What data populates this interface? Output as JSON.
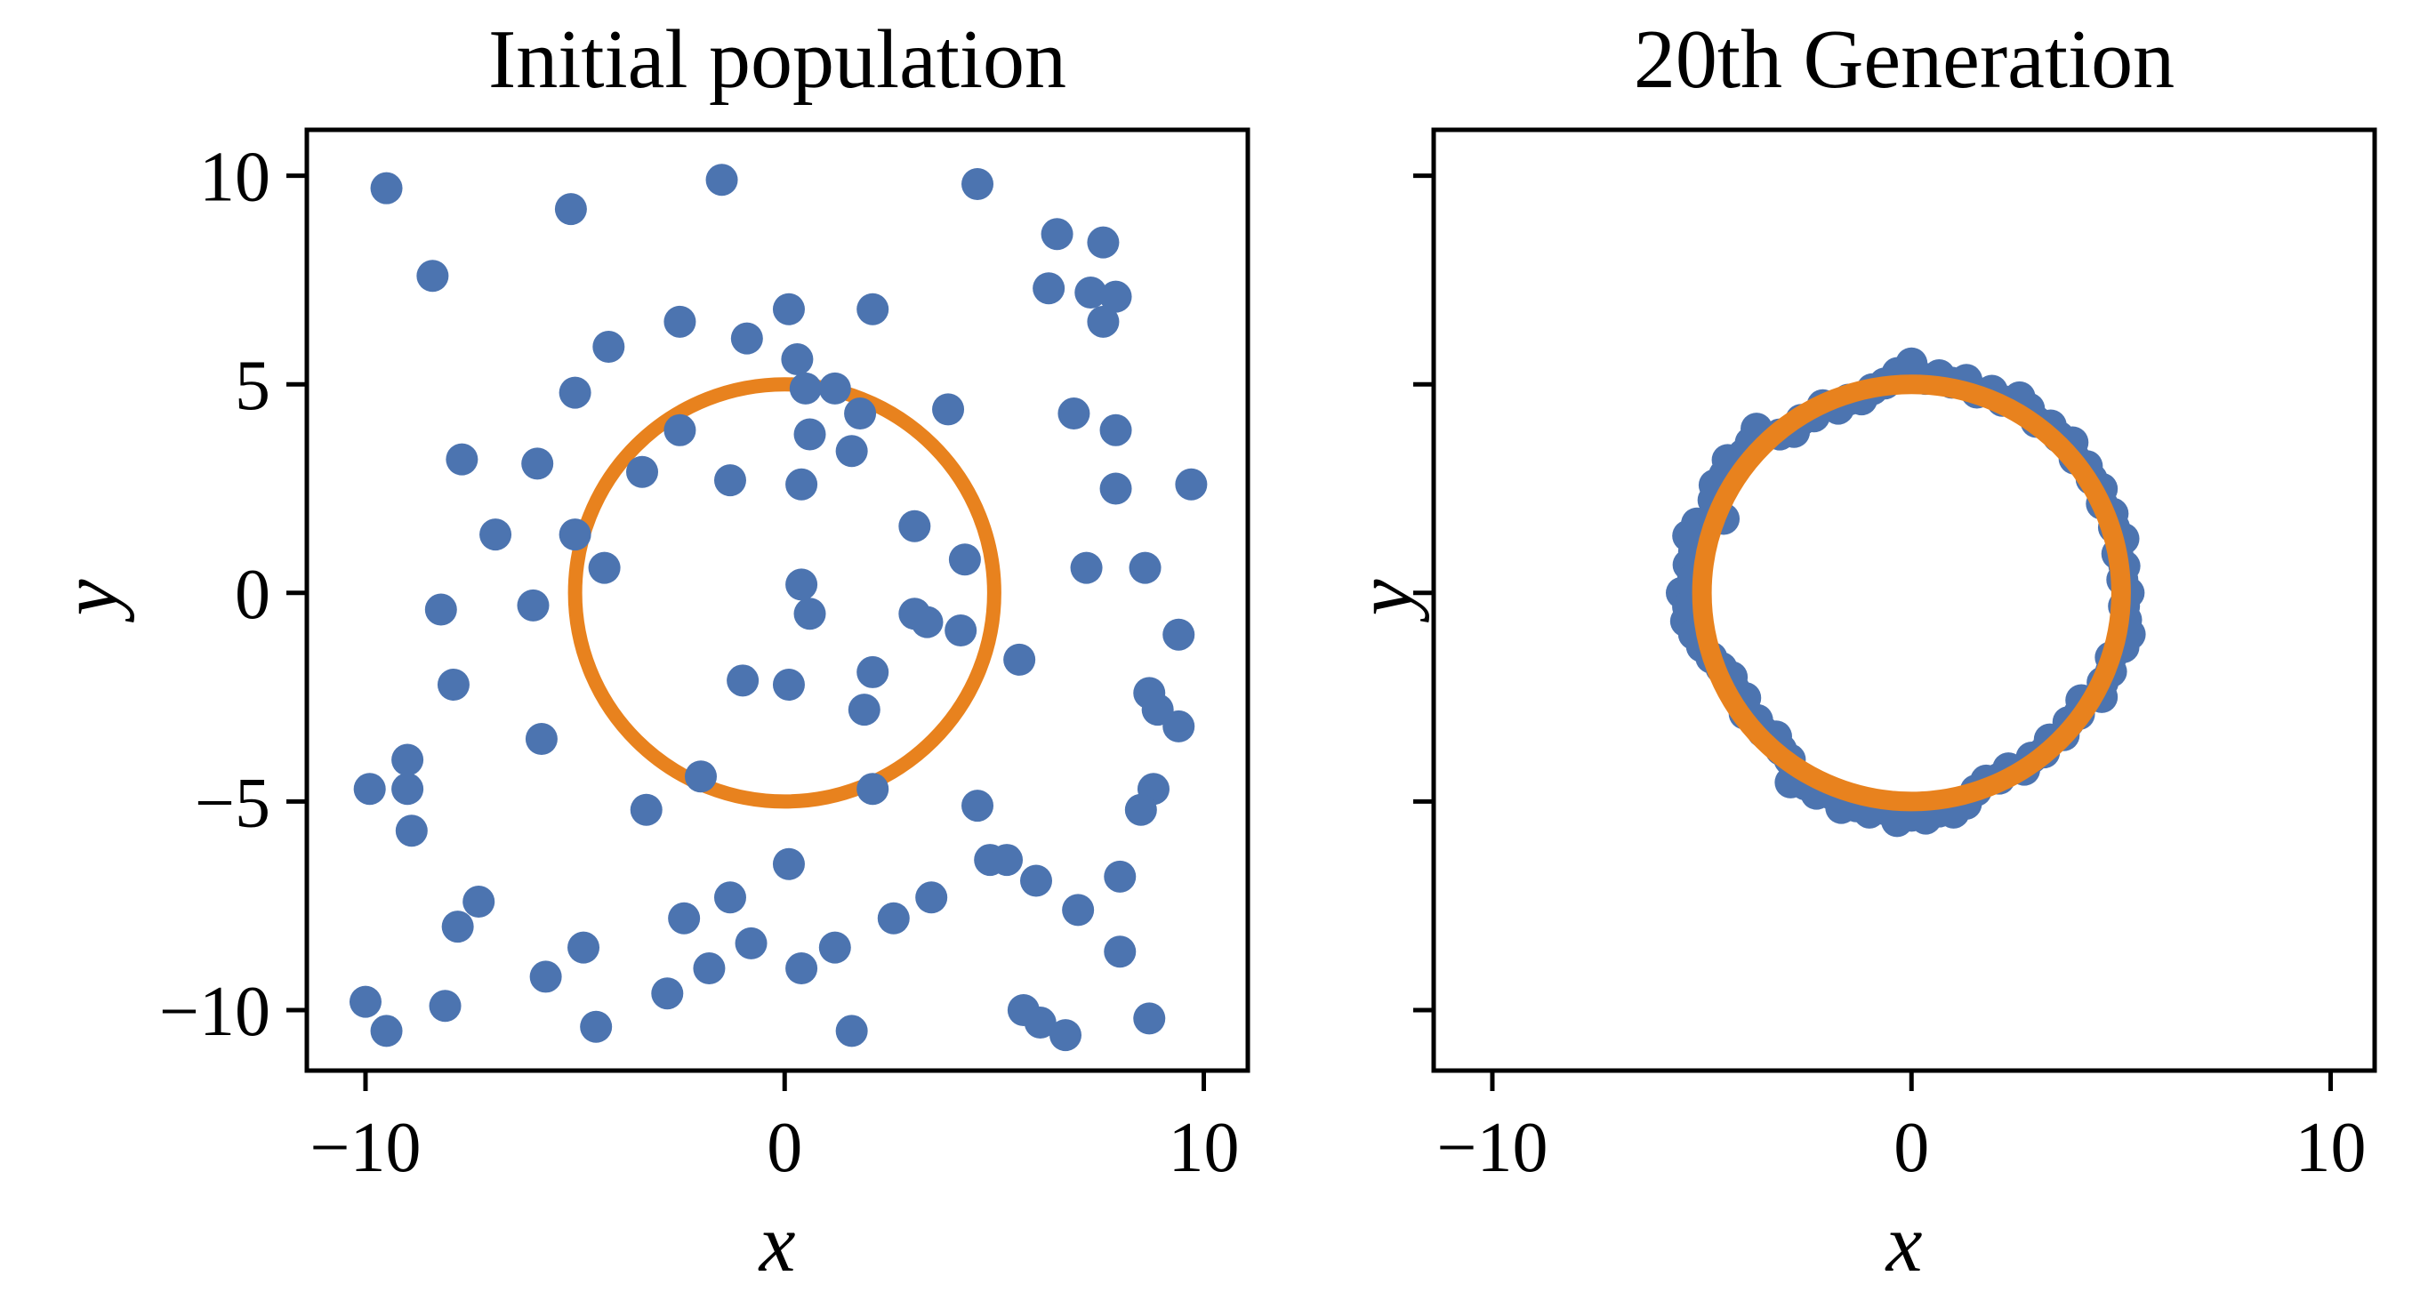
{
  "figure": {
    "background": "#ffffff",
    "point_color": "#4C74B0",
    "circle_color": "#E8821E",
    "axis_color": "#000000"
  },
  "chart_data": [
    {
      "type": "scatter",
      "panel": "left",
      "title": "Initial population",
      "xlabel": "x",
      "ylabel": "y",
      "xlim": [
        -11.4,
        11.05
      ],
      "ylim": [
        -11.45,
        11.1
      ],
      "grid": false,
      "xticks": [
        -10,
        0,
        10
      ],
      "xtick_labels": [
        "−10",
        "0",
        "10"
      ],
      "yticks": [
        10,
        5,
        0,
        -5,
        -10
      ],
      "ytick_labels": [
        "10",
        "5",
        "0",
        "−5",
        "−10"
      ],
      "reference_circle": {
        "cx": 0,
        "cy": 0,
        "radius": 5,
        "circle_on_top": false
      },
      "points": [
        [
          -9.5,
          9.7
        ],
        [
          -5.1,
          9.2
        ],
        [
          -1.5,
          9.9
        ],
        [
          -8.4,
          7.6
        ],
        [
          -2.5,
          6.5
        ],
        [
          -4.2,
          5.9
        ],
        [
          -0.9,
          6.1
        ],
        [
          -5.0,
          4.8
        ],
        [
          -2.5,
          3.9
        ],
        [
          -7.7,
          3.2
        ],
        [
          -5.9,
          3.1
        ],
        [
          -3.4,
          2.9
        ],
        [
          -1.3,
          2.7
        ],
        [
          -6.9,
          1.4
        ],
        [
          -5.0,
          1.4
        ],
        [
          -4.3,
          0.6
        ],
        [
          4.6,
          9.8
        ],
        [
          6.5,
          8.6
        ],
        [
          7.6,
          8.4
        ],
        [
          6.3,
          7.3
        ],
        [
          7.3,
          7.2
        ],
        [
          7.9,
          7.1
        ],
        [
          7.6,
          6.5
        ],
        [
          2.1,
          6.8
        ],
        [
          0.1,
          6.8
        ],
        [
          0.3,
          5.6
        ],
        [
          0.5,
          4.9
        ],
        [
          1.2,
          4.9
        ],
        [
          1.8,
          4.3
        ],
        [
          0.6,
          3.8
        ],
        [
          1.6,
          3.4
        ],
        [
          3.9,
          4.4
        ],
        [
          6.9,
          4.3
        ],
        [
          7.9,
          3.9
        ],
        [
          0.4,
          2.6
        ],
        [
          7.9,
          2.5
        ],
        [
          9.7,
          2.6
        ],
        [
          3.1,
          1.6
        ],
        [
          4.3,
          0.8
        ],
        [
          7.2,
          0.6
        ],
        [
          8.6,
          0.6
        ],
        [
          0.4,
          0.2
        ],
        [
          -8.2,
          -0.4
        ],
        [
          -6.0,
          -0.3
        ],
        [
          -7.9,
          -2.2
        ],
        [
          -5.8,
          -3.5
        ],
        [
          -9.0,
          -4.0
        ],
        [
          -9.9,
          -4.7
        ],
        [
          -9.0,
          -4.7
        ],
        [
          -8.9,
          -5.7
        ],
        [
          -2.0,
          -4.4
        ],
        [
          -3.3,
          -5.2
        ],
        [
          -1.0,
          -2.1
        ],
        [
          -7.3,
          -7.4
        ],
        [
          -7.8,
          -8.0
        ],
        [
          -4.8,
          -8.5
        ],
        [
          -2.4,
          -7.8
        ],
        [
          -1.3,
          -7.3
        ],
        [
          -5.7,
          -9.2
        ],
        [
          -10.0,
          -9.8
        ],
        [
          -9.5,
          -10.5
        ],
        [
          -8.1,
          -9.9
        ],
        [
          -4.5,
          -10.4
        ],
        [
          -2.8,
          -9.6
        ],
        [
          -1.8,
          -9.0
        ],
        [
          -0.8,
          -8.4
        ],
        [
          0.6,
          -0.5
        ],
        [
          3.1,
          -0.5
        ],
        [
          3.4,
          -0.7
        ],
        [
          4.2,
          -0.9
        ],
        [
          5.6,
          -1.6
        ],
        [
          2.1,
          -1.9
        ],
        [
          0.1,
          -2.2
        ],
        [
          1.9,
          -2.8
        ],
        [
          8.7,
          -2.4
        ],
        [
          8.9,
          -2.8
        ],
        [
          9.4,
          -3.2
        ],
        [
          9.4,
          -1.0
        ],
        [
          2.1,
          -4.7
        ],
        [
          4.6,
          -5.1
        ],
        [
          8.8,
          -4.7
        ],
        [
          8.5,
          -5.2
        ],
        [
          4.9,
          -6.4
        ],
        [
          5.3,
          -6.4
        ],
        [
          6.0,
          -6.9
        ],
        [
          7.0,
          -7.6
        ],
        [
          8.0,
          -6.8
        ],
        [
          3.5,
          -7.3
        ],
        [
          2.6,
          -7.8
        ],
        [
          1.2,
          -8.5
        ],
        [
          0.4,
          -9.0
        ],
        [
          0.1,
          -6.5
        ],
        [
          8.0,
          -8.6
        ],
        [
          1.6,
          -10.5
        ],
        [
          5.7,
          -10.0
        ],
        [
          6.1,
          -10.3
        ],
        [
          6.7,
          -10.6
        ],
        [
          8.7,
          -10.2
        ]
      ]
    },
    {
      "type": "scatter",
      "panel": "right",
      "title": "20th Generation",
      "xlabel": "x",
      "ylabel": "y",
      "xlim": [
        -11.4,
        11.05
      ],
      "ylim": [
        -11.45,
        11.1
      ],
      "grid": false,
      "xticks": [
        -10,
        0,
        10
      ],
      "xtick_labels": [
        "−10",
        "0",
        "10"
      ],
      "yticks": [
        10,
        5,
        0,
        -5,
        -10
      ],
      "ytick_labels": [],
      "reference_circle": {
        "cx": 0,
        "cy": 0,
        "radius": 5,
        "circle_on_top": true
      },
      "points_polar": [
        [
          0,
          5.18
        ],
        [
          3.6,
          5.04
        ],
        [
          7.2,
          5.12
        ],
        [
          10.8,
          5.0
        ],
        [
          14.4,
          5.22
        ],
        [
          18,
          5.08
        ],
        [
          21.6,
          5.16
        ],
        [
          25.2,
          5.02
        ],
        [
          28.8,
          5.18
        ],
        [
          32.4,
          5.09
        ],
        [
          36,
          5.17
        ],
        [
          39.6,
          5.05
        ],
        [
          43.2,
          5.27
        ],
        [
          46.8,
          5.13
        ],
        [
          50.4,
          5.21
        ],
        [
          54,
          5.07
        ],
        [
          57.6,
          5.23
        ],
        [
          61.2,
          5.35
        ],
        [
          64.8,
          5.09
        ],
        [
          68.4,
          5.21
        ],
        [
          72,
          5.05
        ],
        [
          75.6,
          5.27
        ],
        [
          79.2,
          5.13
        ],
        [
          82.8,
          5.26
        ],
        [
          86.4,
          5.14
        ],
        [
          90,
          5.5
        ],
        [
          93.6,
          5.28
        ],
        [
          97.2,
          5.06
        ],
        [
          100.8,
          4.97
        ],
        [
          104.4,
          4.79
        ],
        [
          108,
          4.87
        ],
        [
          111.6,
          4.75
        ],
        [
          115.2,
          4.97
        ],
        [
          118.8,
          4.83
        ],
        [
          122.4,
          4.91
        ],
        [
          126,
          4.77
        ],
        [
          129.6,
          4.93
        ],
        [
          133.2,
          5.4
        ],
        [
          136.8,
          5.26
        ],
        [
          140.4,
          5.2
        ],
        [
          144,
          5.42
        ],
        [
          147.6,
          5.28
        ],
        [
          151.2,
          5.36
        ],
        [
          154.8,
          5.22
        ],
        [
          158.4,
          4.82
        ],
        [
          162,
          5.38
        ],
        [
          165.6,
          5.5
        ],
        [
          169.2,
          5.28
        ],
        [
          172.8,
          5.36
        ],
        [
          176.4,
          5.22
        ],
        [
          180,
          5.48
        ],
        [
          183.6,
          5.34
        ],
        [
          187.2,
          5.42
        ],
        [
          190.8,
          5.28
        ],
        [
          194.4,
          5.16
        ],
        [
          198,
          5.02
        ],
        [
          201.6,
          4.88
        ],
        [
          205.2,
          4.74
        ],
        [
          208.8,
          4.82
        ],
        [
          212.4,
          4.7
        ],
        [
          216,
          4.92
        ],
        [
          219.6,
          4.78
        ],
        [
          223.2,
          4.86
        ],
        [
          226.8,
          4.72
        ],
        [
          230.4,
          4.88
        ],
        [
          234,
          4.94
        ],
        [
          237.6,
          5.38
        ],
        [
          241.2,
          5.24
        ],
        [
          244.8,
          5.32
        ],
        [
          248.4,
          5.18
        ],
        [
          252,
          5.42
        ],
        [
          255.6,
          5.28
        ],
        [
          259.2,
          5.36
        ],
        [
          262.8,
          5.22
        ],
        [
          266.4,
          5.48
        ],
        [
          270,
          5.34
        ],
        [
          273.6,
          5.42
        ],
        [
          277.2,
          5.28
        ],
        [
          280.8,
          5.36
        ],
        [
          284.4,
          5.22
        ],
        [
          288,
          4.98
        ],
        [
          291.6,
          4.84
        ],
        [
          295.2,
          4.92
        ],
        [
          298.8,
          4.8
        ],
        [
          302.4,
          5.02
        ],
        [
          306,
          4.88
        ],
        [
          309.6,
          4.96
        ],
        [
          313.2,
          4.82
        ],
        [
          316.8,
          4.98
        ],
        [
          320.4,
          4.86
        ],
        [
          324,
          4.94
        ],
        [
          327.6,
          4.8
        ],
        [
          331.2,
          5.18
        ],
        [
          334.8,
          5.04
        ],
        [
          338.4,
          5.12
        ],
        [
          342,
          5.0
        ],
        [
          345.6,
          5.22
        ],
        [
          349.2,
          5.3
        ],
        [
          352.8,
          5.16
        ],
        [
          356.4,
          5.08
        ]
      ]
    }
  ]
}
